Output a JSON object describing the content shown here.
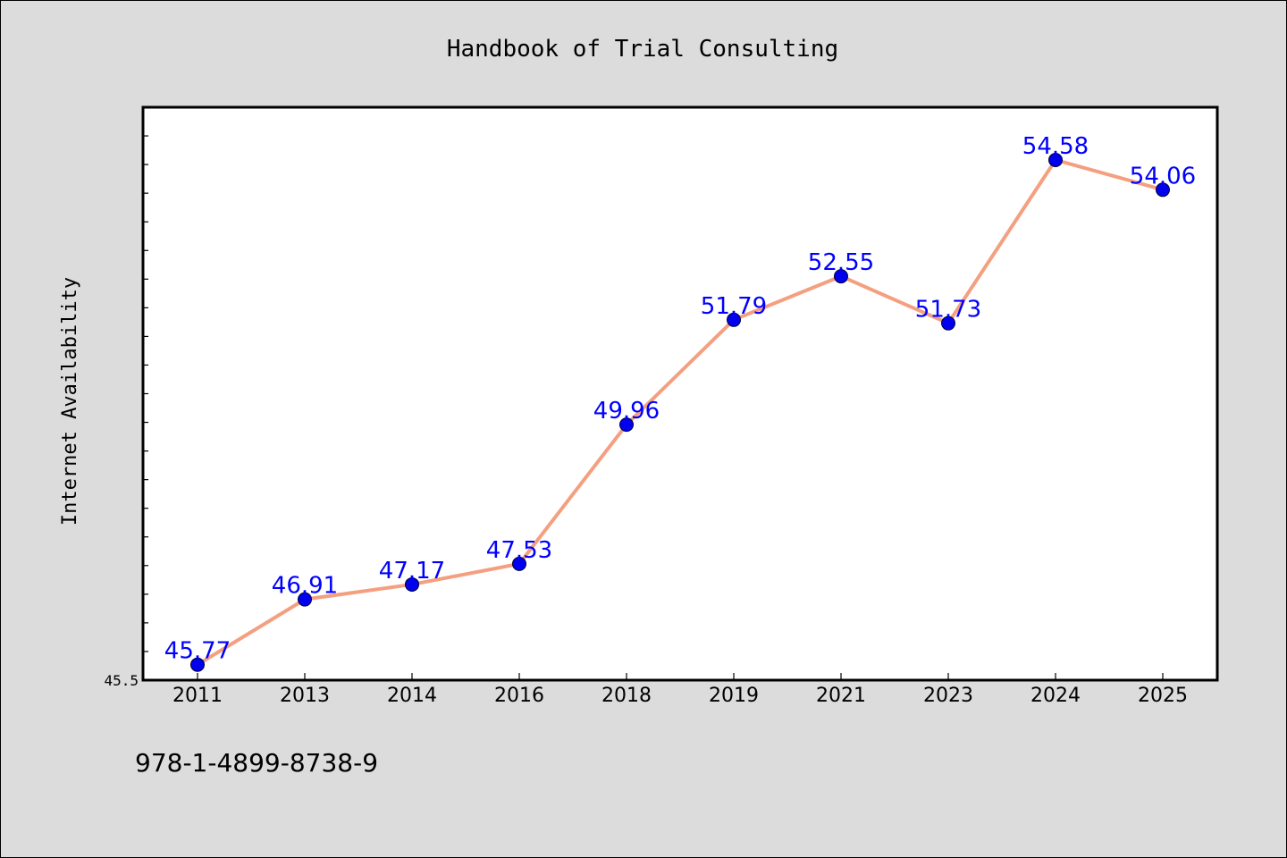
{
  "chart_data": {
    "type": "line",
    "title": "Handbook of Trial Consulting",
    "xlabel": "",
    "ylabel": "Internet Availability",
    "categories": [
      "2011",
      "2013",
      "2014",
      "2016",
      "2018",
      "2019",
      "2021",
      "2023",
      "2024",
      "2025"
    ],
    "series": [
      {
        "values": [
          45.77,
          46.91,
          47.17,
          47.53,
          49.96,
          51.79,
          52.55,
          51.73,
          54.58,
          54.06
        ]
      }
    ],
    "ylim": [
      45.5,
      55.5
    ],
    "ytick_labels": [
      "45.5"
    ],
    "grid": false,
    "line_color": "#f4a080",
    "marker_color": "#0000ee",
    "label_color": "#0000ff",
    "annotation": "978-1-4899-8738-9"
  }
}
